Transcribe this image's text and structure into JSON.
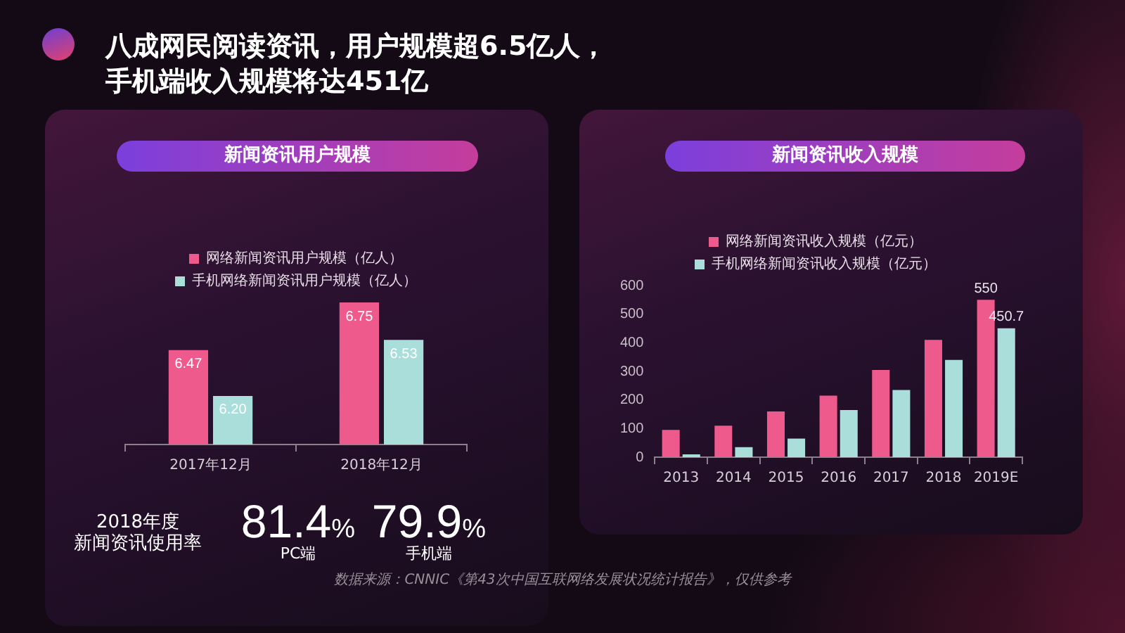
{
  "chart_data": [
    {
      "type": "other",
      "title": "八成网民阅读资讯，用户规模超6.5亿人，手机端收入规模将达451亿",
      "annotations": [
        "数据来源：CNNIC《第43次中国互联网络发展状况统计报告》，仅供参考"
      ]
    },
    {
      "type": "bar",
      "title": "新闻资讯用户规模",
      "categories": [
        "2017年12月",
        "2018年12月"
      ],
      "series": [
        {
          "name": "网络新闻资讯用户规模（亿人）",
          "color": "#ee5a8c",
          "values": [
            6.47,
            6.75
          ],
          "value_labels": [
            "6.47",
            "6.75"
          ]
        },
        {
          "name": "手机网络新闻资讯用户规模（亿人）",
          "color": "#a9dedb",
          "values": [
            6.2,
            6.53
          ],
          "value_labels": [
            "6.20",
            "6.53"
          ]
        }
      ],
      "tick_labels": "x",
      "legend": "top"
    },
    {
      "type": "bar",
      "title": "新闻资讯收入规模",
      "categories": [
        "2013",
        "2014",
        "2015",
        "2016",
        "2017",
        "2018",
        "2019E"
      ],
      "series": [
        {
          "name": "网络新闻资讯收入规模（亿元）",
          "color": "#ee5a8c",
          "values": [
            95,
            110,
            160,
            215,
            305,
            410,
            550
          ],
          "value_labels": [
            null,
            null,
            null,
            null,
            null,
            null,
            "550"
          ]
        },
        {
          "name": "手机网络新闻资讯收入规模（亿元）",
          "color": "#a9dedb",
          "values": [
            10,
            35,
            65,
            165,
            235,
            340,
            450.7
          ],
          "value_labels": [
            null,
            null,
            null,
            null,
            null,
            null,
            "450.7"
          ]
        }
      ],
      "ylim": [
        0,
        600
      ],
      "yticks": [
        0,
        100,
        200,
        300,
        400,
        500,
        600
      ],
      "legend": "top"
    },
    {
      "type": "other",
      "title": "2018年度",
      "subtitle": "新闻资讯使用率",
      "annotations": [
        "81.4%",
        "PC端",
        "79.9%",
        "手机端"
      ]
    }
  ]
}
